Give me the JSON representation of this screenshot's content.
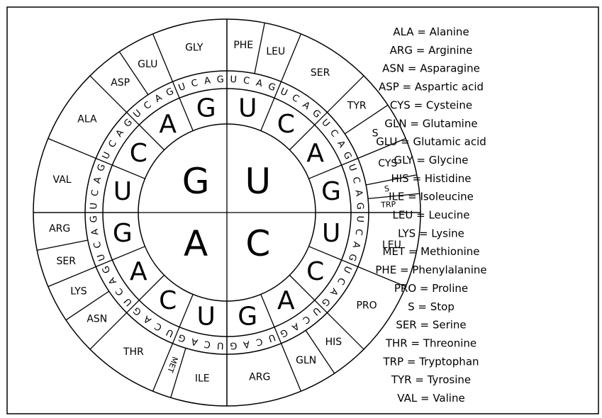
{
  "first_bases": [
    "U",
    "C",
    "A",
    "G"
  ],
  "second_bases": [
    "U",
    "C",
    "A",
    "G",
    "U",
    "C",
    "A",
    "G",
    "U",
    "C",
    "A",
    "G",
    "U",
    "C",
    "A",
    "G"
  ],
  "third_bases": [
    "U",
    "C",
    "A",
    "G",
    "U",
    "C",
    "A",
    "G",
    "U",
    "C",
    "A",
    "G",
    "U",
    "C",
    "A",
    "G",
    "U",
    "C",
    "A",
    "G",
    "U",
    "C",
    "A",
    "G",
    "U",
    "C",
    "A",
    "G",
    "U",
    "C",
    "A",
    "G",
    "U",
    "C",
    "A",
    "G",
    "U",
    "C",
    "A",
    "G",
    "U",
    "C",
    "A",
    "G",
    "U",
    "C",
    "A",
    "G",
    "U",
    "C",
    "A",
    "G",
    "U",
    "C",
    "A",
    "G",
    "U",
    "C",
    "A",
    "G",
    "U",
    "C",
    "A",
    "G"
  ],
  "amino_acids": [
    "PHE",
    "LEU",
    "SER",
    "TYR",
    "S",
    "CYS",
    "S",
    "TRP",
    "LEU",
    "PRO",
    "HIS",
    "GLN",
    "ARG",
    "ILE",
    "MET",
    "THR",
    "ASN",
    "LYS",
    "SER",
    "ARG",
    "VAL",
    "ALA",
    "ASP",
    "GLU",
    "GLY"
  ],
  "legend": [
    "ALA = Alanine",
    "ARG = Arginine",
    "ASN = Asparagine",
    "ASP = Aspartic acid",
    "CYS = Cysteine",
    "GLN = Glutamine",
    "GLU = Glutamic acid",
    "GLY = Glycine",
    "HIS = Histidine",
    "ILE = Isoleucine",
    "LEU = Leucine",
    "LYS = Lysine",
    "MET = Methionine",
    "PHE = Phenylalanine",
    "PRO = Proline",
    "S = Stop",
    "SER = Serine",
    "THR = Threonine",
    "TRP = Tryptophan",
    "TYR = Tyrosine",
    "VAL = Valine"
  ]
}
